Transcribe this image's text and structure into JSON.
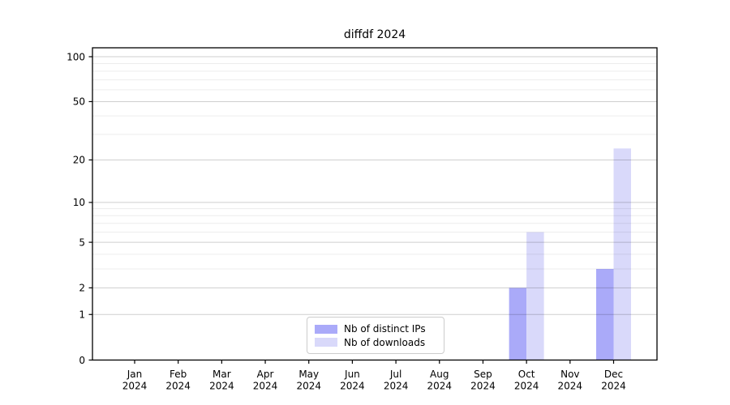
{
  "chart_data": {
    "type": "bar",
    "title": "diffdf 2024",
    "categories": [
      "Jan",
      "Feb",
      "Mar",
      "Apr",
      "May",
      "Jun",
      "Jul",
      "Aug",
      "Sep",
      "Oct",
      "Nov",
      "Dec"
    ],
    "category_year": "2024",
    "series": [
      {
        "name": "Nb of distinct IPs",
        "key": "distinct-ips",
        "color": "#aaaaf9",
        "values": [
          0,
          0,
          0,
          0,
          0,
          0,
          0,
          0,
          0,
          2,
          0,
          3
        ]
      },
      {
        "name": "Nb of downloads",
        "key": "downloads",
        "color": "#d9d9fa",
        "values": [
          0,
          0,
          0,
          0,
          0,
          0,
          0,
          0,
          0,
          6,
          0,
          24
        ]
      }
    ],
    "yscale": "log1p",
    "yticks": [
      0,
      1,
      2,
      5,
      10,
      20,
      50,
      100
    ],
    "yticks_minor": [
      3,
      4,
      6,
      7,
      8,
      9,
      30,
      40,
      60,
      70,
      80,
      90
    ],
    "ylim": [
      0,
      114
    ],
    "xlabel": "",
    "ylabel": "",
    "grid": "horizontal",
    "legend_position": "lower center",
    "colors": {
      "major_grid": "rgba(0,0,0,0.19)",
      "minor_grid": "rgba(0,0,0,0.075)",
      "spine": "#000000",
      "tick_text": "#000000"
    }
  }
}
